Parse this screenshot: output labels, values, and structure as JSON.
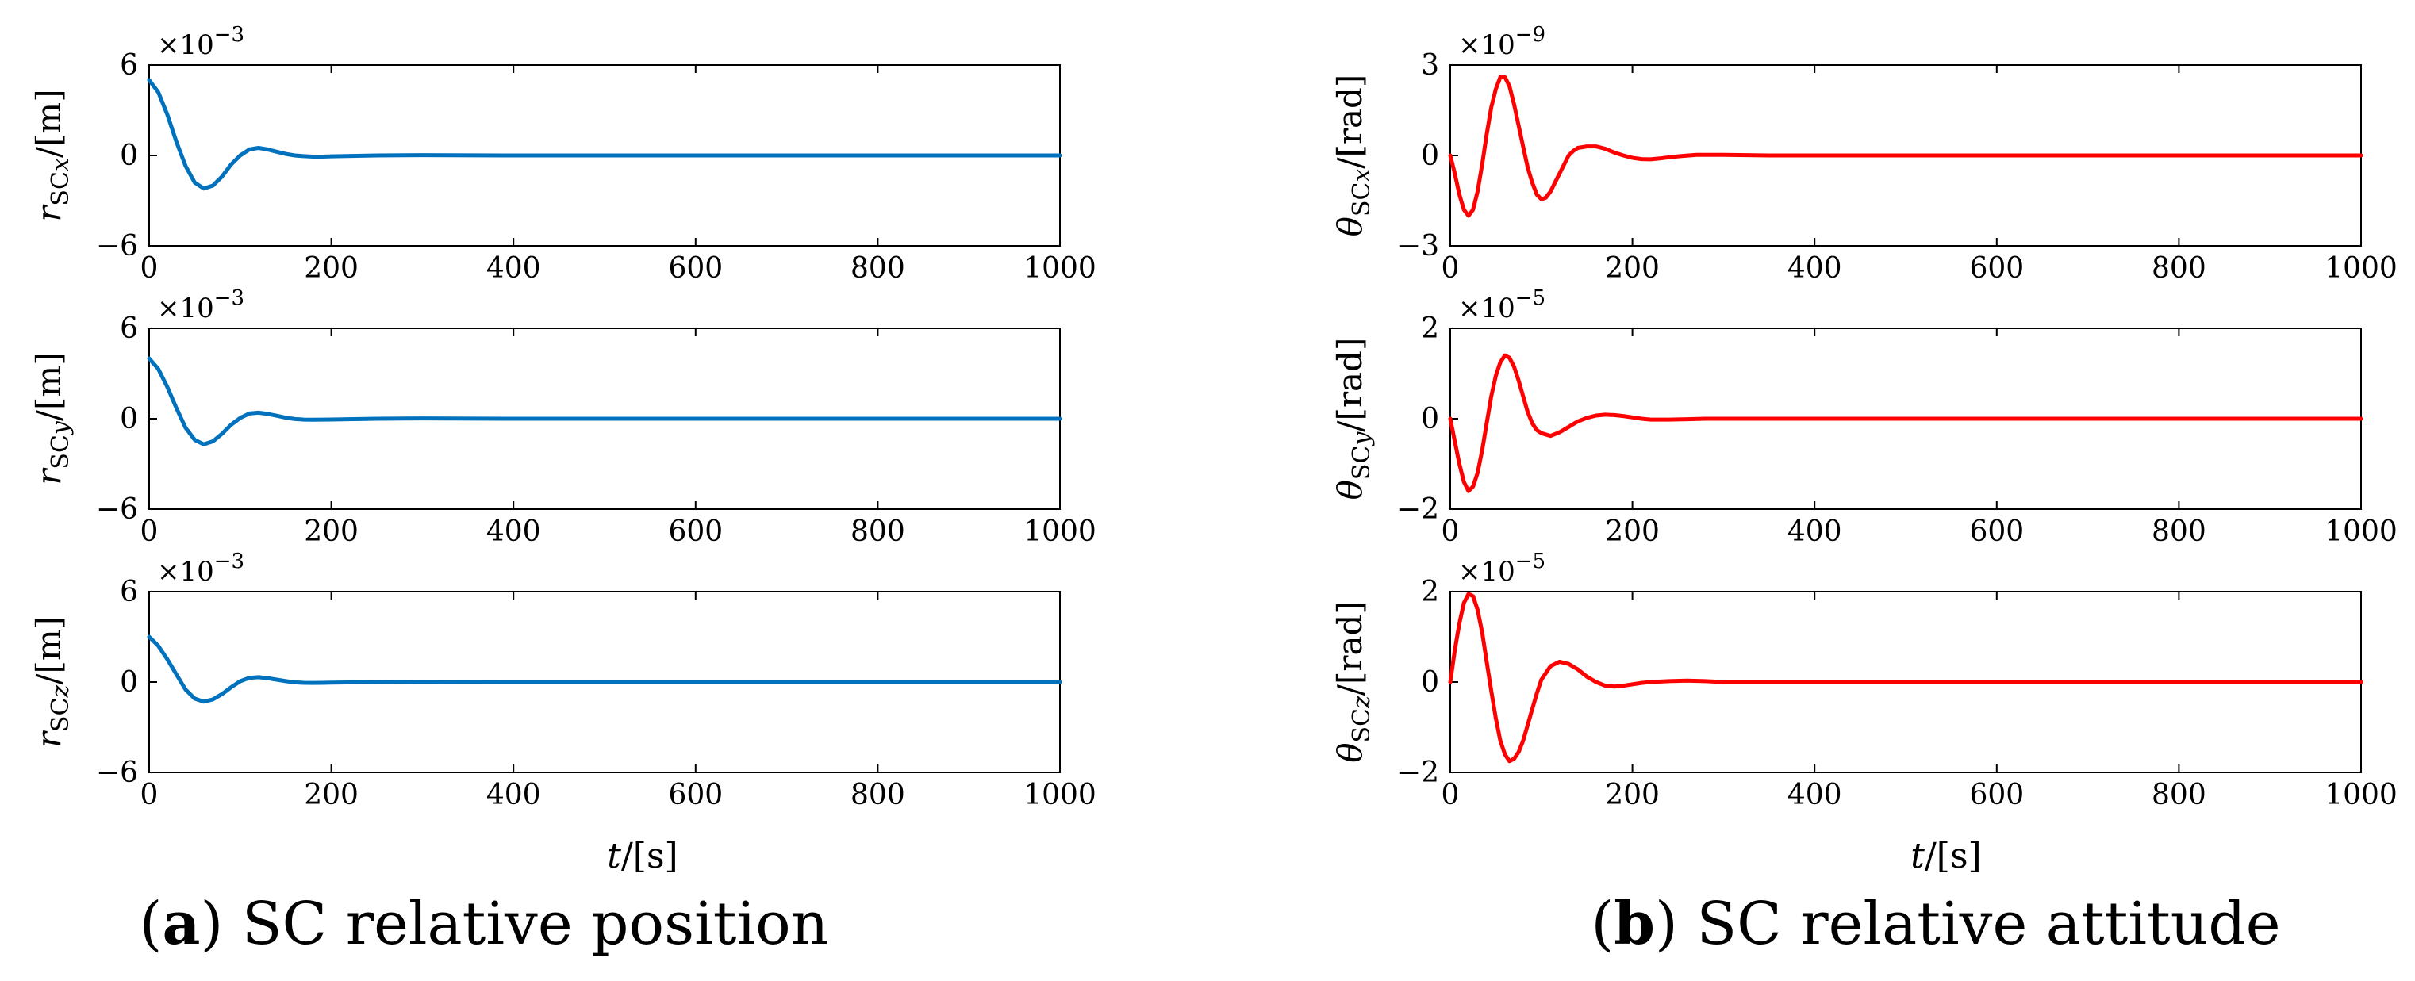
{
  "captions": {
    "a": {
      "letter": "a",
      "text": ") SC relative position",
      "open": "("
    },
    "b": {
      "letter": "b",
      "text": ") SC relative attitude",
      "open": "("
    }
  },
  "xlabel": {
    "var": "t",
    "unit": "/[s]"
  },
  "colors": {
    "position": "#0072BD",
    "attitude": "#FF0000"
  },
  "chart_data": [
    {
      "type": "line",
      "panel": "a",
      "row": 1,
      "ylabel": {
        "sym": "r",
        "sub": "SC",
        "subvar": "x",
        "unit": "/[m]"
      },
      "multiplier": {
        "base": "×10",
        "exp": "−3"
      },
      "xlim": [
        0,
        1000
      ],
      "ylim": [
        -6,
        6
      ],
      "xticks": [
        "0",
        "200",
        "400",
        "600",
        "800",
        "1000"
      ],
      "yticks": [
        "6",
        "0",
        "−6"
      ],
      "series": [
        {
          "name": "r_SCx",
          "x": [
            0,
            10,
            20,
            30,
            40,
            50,
            60,
            70,
            80,
            90,
            100,
            110,
            120,
            130,
            140,
            150,
            160,
            170,
            180,
            190,
            200,
            250,
            300,
            400,
            600,
            800,
            1000
          ],
          "y": [
            5.0,
            4.2,
            2.7,
            0.9,
            -0.7,
            -1.8,
            -2.2,
            -2.0,
            -1.4,
            -0.6,
            0.0,
            0.4,
            0.5,
            0.4,
            0.25,
            0.1,
            0.0,
            -0.05,
            -0.08,
            -0.08,
            -0.06,
            0.0,
            0.02,
            0.0,
            0.0,
            0.0,
            0.0
          ]
        }
      ]
    },
    {
      "type": "line",
      "panel": "a",
      "row": 2,
      "ylabel": {
        "sym": "r",
        "sub": "SC",
        "subvar": "y",
        "unit": "/[m]"
      },
      "multiplier": {
        "base": "×10",
        "exp": "−3"
      },
      "xlim": [
        0,
        1000
      ],
      "ylim": [
        -6,
        6
      ],
      "xticks": [
        "0",
        "200",
        "400",
        "600",
        "800",
        "1000"
      ],
      "yticks": [
        "6",
        "0",
        "−6"
      ],
      "series": [
        {
          "name": "r_SCy",
          "x": [
            0,
            10,
            20,
            30,
            40,
            50,
            60,
            70,
            80,
            90,
            100,
            110,
            120,
            130,
            140,
            150,
            160,
            170,
            180,
            190,
            200,
            250,
            300,
            400,
            600,
            800,
            1000
          ],
          "y": [
            4.0,
            3.3,
            2.1,
            0.7,
            -0.6,
            -1.4,
            -1.7,
            -1.5,
            -1.0,
            -0.4,
            0.05,
            0.35,
            0.4,
            0.32,
            0.2,
            0.07,
            -0.02,
            -0.06,
            -0.07,
            -0.06,
            -0.05,
            0.0,
            0.02,
            0.0,
            0.0,
            0.0,
            0.0
          ]
        }
      ]
    },
    {
      "type": "line",
      "panel": "a",
      "row": 3,
      "ylabel": {
        "sym": "r",
        "sub": "SC",
        "subvar": "z",
        "unit": "/[m]"
      },
      "multiplier": {
        "base": "×10",
        "exp": "−3"
      },
      "xlim": [
        0,
        1000
      ],
      "ylim": [
        -6,
        6
      ],
      "xticks": [
        "0",
        "200",
        "400",
        "600",
        "800",
        "1000"
      ],
      "yticks": [
        "6",
        "0",
        "−6"
      ],
      "series": [
        {
          "name": "r_SCz",
          "x": [
            0,
            10,
            20,
            30,
            40,
            50,
            60,
            70,
            80,
            90,
            100,
            110,
            120,
            130,
            140,
            150,
            160,
            170,
            180,
            190,
            200,
            250,
            300,
            400,
            600,
            800,
            1000
          ],
          "y": [
            3.0,
            2.4,
            1.5,
            0.5,
            -0.5,
            -1.1,
            -1.3,
            -1.15,
            -0.8,
            -0.35,
            0.05,
            0.28,
            0.32,
            0.26,
            0.16,
            0.06,
            -0.02,
            -0.05,
            -0.06,
            -0.05,
            -0.04,
            0.0,
            0.01,
            0.0,
            0.0,
            0.0,
            0.0
          ]
        }
      ]
    },
    {
      "type": "line",
      "panel": "b",
      "row": 1,
      "ylabel": {
        "sym": "θ",
        "sub": "SC",
        "subvar": "x",
        "unit": "/[rad]"
      },
      "multiplier": {
        "base": "×10",
        "exp": "−9"
      },
      "xlim": [
        0,
        1000
      ],
      "ylim": [
        -3,
        3
      ],
      "xticks": [
        "0",
        "200",
        "400",
        "600",
        "800",
        "1000"
      ],
      "yticks": [
        "3",
        "0",
        "−3"
      ],
      "series": [
        {
          "name": "theta_SCx",
          "x": [
            0,
            5,
            10,
            15,
            20,
            25,
            30,
            35,
            40,
            45,
            50,
            55,
            60,
            65,
            70,
            75,
            80,
            85,
            90,
            95,
            100,
            105,
            110,
            115,
            120,
            125,
            130,
            135,
            140,
            150,
            160,
            170,
            180,
            190,
            200,
            210,
            220,
            230,
            240,
            250,
            270,
            300,
            350,
            400,
            600,
            800,
            1000
          ],
          "y": [
            0.0,
            -0.6,
            -1.3,
            -1.8,
            -2.0,
            -1.8,
            -1.2,
            -0.3,
            0.7,
            1.6,
            2.2,
            2.6,
            2.6,
            2.3,
            1.7,
            1.0,
            0.3,
            -0.4,
            -0.9,
            -1.3,
            -1.45,
            -1.4,
            -1.2,
            -0.9,
            -0.6,
            -0.3,
            0.0,
            0.15,
            0.25,
            0.3,
            0.3,
            0.22,
            0.1,
            0.0,
            -0.08,
            -0.12,
            -0.13,
            -0.1,
            -0.06,
            -0.03,
            0.02,
            0.02,
            0.0,
            0.0,
            0.0,
            0.0,
            0.0
          ]
        }
      ]
    },
    {
      "type": "line",
      "panel": "b",
      "row": 2,
      "ylabel": {
        "sym": "θ",
        "sub": "SC",
        "subvar": "y",
        "unit": "/[rad]"
      },
      "multiplier": {
        "base": "×10",
        "exp": "−5"
      },
      "xlim": [
        0,
        1000
      ],
      "ylim": [
        -2,
        2
      ],
      "xticks": [
        "0",
        "200",
        "400",
        "600",
        "800",
        "1000"
      ],
      "yticks": [
        "2",
        "0",
        "−2"
      ],
      "series": [
        {
          "name": "theta_SCy",
          "x": [
            0,
            5,
            10,
            15,
            20,
            25,
            30,
            35,
            40,
            45,
            50,
            55,
            60,
            65,
            70,
            75,
            80,
            85,
            90,
            95,
            100,
            110,
            120,
            130,
            140,
            150,
            160,
            170,
            180,
            190,
            200,
            210,
            220,
            240,
            260,
            280,
            300,
            400,
            600,
            800,
            1000
          ],
          "y": [
            0.0,
            -0.5,
            -1.0,
            -1.4,
            -1.6,
            -1.5,
            -1.2,
            -0.7,
            -0.1,
            0.5,
            0.95,
            1.25,
            1.4,
            1.35,
            1.15,
            0.85,
            0.5,
            0.15,
            -0.1,
            -0.25,
            -0.32,
            -0.38,
            -0.3,
            -0.18,
            -0.06,
            0.02,
            0.07,
            0.09,
            0.08,
            0.06,
            0.03,
            0.0,
            -0.02,
            -0.02,
            -0.01,
            0.0,
            0.0,
            0.0,
            0.0,
            0.0,
            0.0
          ]
        }
      ]
    },
    {
      "type": "line",
      "panel": "b",
      "row": 3,
      "ylabel": {
        "sym": "θ",
        "sub": "SC",
        "subvar": "z",
        "unit": "/[rad]"
      },
      "multiplier": {
        "base": "×10",
        "exp": "−5"
      },
      "xlim": [
        0,
        1000
      ],
      "ylim": [
        -2,
        2
      ],
      "xticks": [
        "0",
        "200",
        "400",
        "600",
        "800",
        "1000"
      ],
      "yticks": [
        "2",
        "0",
        "−2"
      ],
      "series": [
        {
          "name": "theta_SCz",
          "x": [
            0,
            5,
            10,
            15,
            20,
            25,
            30,
            35,
            40,
            45,
            50,
            55,
            60,
            65,
            70,
            75,
            80,
            85,
            90,
            95,
            100,
            110,
            120,
            130,
            140,
            150,
            160,
            170,
            180,
            190,
            200,
            210,
            220,
            240,
            260,
            280,
            300,
            350,
            400,
            600,
            800,
            1000
          ],
          "y": [
            0.0,
            0.7,
            1.3,
            1.75,
            1.95,
            1.9,
            1.6,
            1.1,
            0.45,
            -0.2,
            -0.8,
            -1.3,
            -1.6,
            -1.75,
            -1.7,
            -1.55,
            -1.3,
            -0.95,
            -0.6,
            -0.25,
            0.05,
            0.35,
            0.45,
            0.4,
            0.28,
            0.12,
            0.0,
            -0.08,
            -0.1,
            -0.08,
            -0.05,
            -0.02,
            0.0,
            0.02,
            0.03,
            0.02,
            0.0,
            0.0,
            0.0,
            0.0,
            0.0,
            0.0
          ]
        }
      ]
    }
  ]
}
